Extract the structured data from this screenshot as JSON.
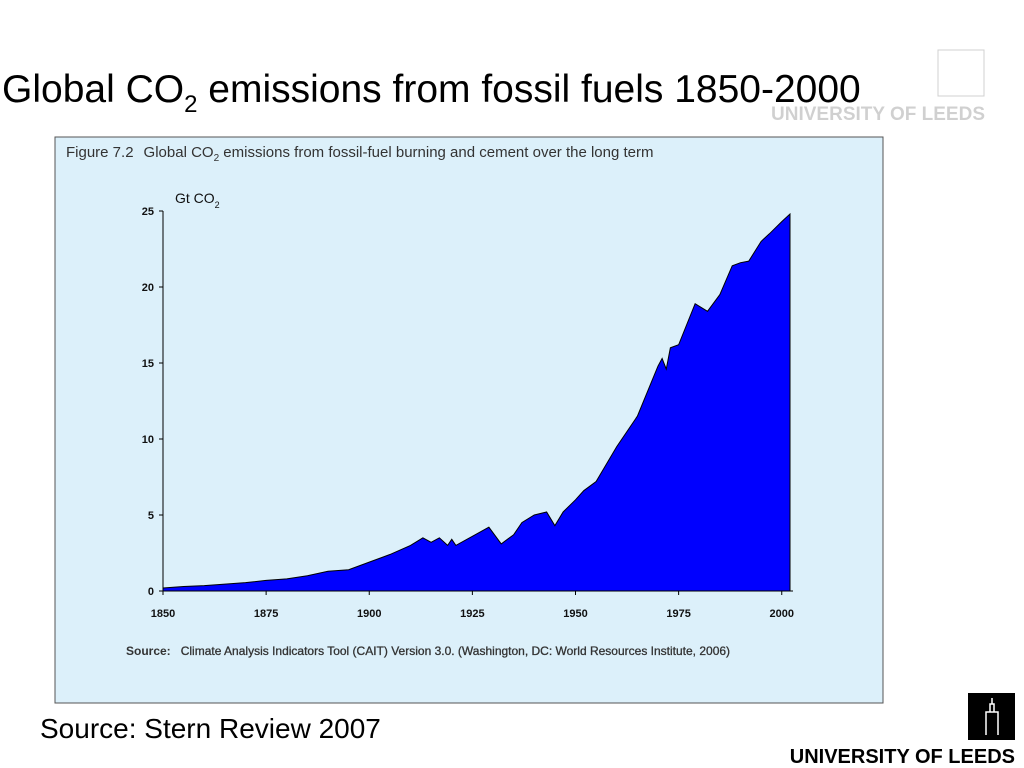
{
  "slide": {
    "title": [
      "Global CO",
      "2",
      " emissions from fossil fuels 1850-2000"
    ],
    "source": "Source: Stern Review 2007"
  },
  "logo": {
    "name": "UNIVERSITY OF LEEDS"
  },
  "chart_data": {
    "type": "area",
    "title": [
      "Figure 7.2",
      "Global CO",
      "2",
      " emissions from fossil-fuel burning and cement over the long term"
    ],
    "y_label": [
      "Gt CO",
      "2"
    ],
    "source": {
      "label": "Source:",
      "text": "Climate Analysis Indicators Tool (CAIT) Version 3.0. (Washington, DC: World Resources Institute, 2006)"
    },
    "x": [
      1850,
      1855,
      1860,
      1865,
      1870,
      1875,
      1880,
      1885,
      1890,
      1895,
      1900,
      1905,
      1910,
      1913,
      1915,
      1917,
      1919,
      1920,
      1921,
      1925,
      1929,
      1932,
      1935,
      1937,
      1940,
      1943,
      1945,
      1947,
      1950,
      1952,
      1955,
      1960,
      1965,
      1970,
      1971,
      1972,
      1973,
      1975,
      1979,
      1982,
      1985,
      1988,
      1990,
      1992,
      1995,
      1997,
      2000,
      2002
    ],
    "values": [
      0.2,
      0.3,
      0.35,
      0.45,
      0.55,
      0.7,
      0.8,
      1.0,
      1.3,
      1.4,
      1.9,
      2.4,
      3.0,
      3.5,
      3.2,
      3.5,
      3.0,
      3.4,
      3.0,
      3.6,
      4.2,
      3.1,
      3.7,
      4.5,
      5.0,
      5.2,
      4.3,
      5.2,
      6.0,
      6.6,
      7.2,
      9.5,
      11.5,
      14.8,
      15.3,
      14.6,
      16.0,
      16.2,
      18.9,
      18.4,
      19.5,
      21.4,
      21.6,
      21.7,
      23.0,
      23.5,
      24.3,
      24.8
    ],
    "color": "#0000ff",
    "xlim": [
      1850,
      2002
    ],
    "xticks": [
      1850,
      1875,
      1900,
      1925,
      1950,
      1975,
      2000
    ],
    "ylim": [
      0,
      25
    ],
    "yticks": [
      0,
      5,
      10,
      15,
      20,
      25
    ]
  }
}
